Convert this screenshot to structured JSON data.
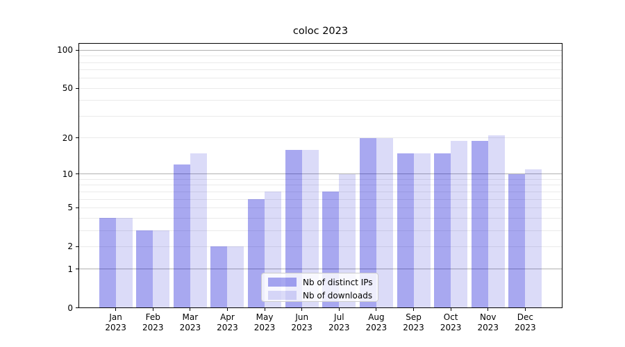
{
  "chart_data": {
    "type": "bar",
    "title": "coloc 2023",
    "x_categories": [
      "Jan",
      "Feb",
      "Mar",
      "Apr",
      "May",
      "Jun",
      "Jul",
      "Aug",
      "Sep",
      "Oct",
      "Nov",
      "Dec"
    ],
    "x_year_label": "2023",
    "series": [
      {
        "name": "Nb of distinct IPs",
        "color": "rgba(0,0,210,0.34)",
        "values": [
          4,
          3,
          12,
          2,
          6,
          16,
          7,
          20,
          15,
          15,
          19,
          10
        ]
      },
      {
        "name": "Nb of downloads",
        "color": "rgba(0,0,205,0.14)",
        "values": [
          4,
          3,
          15,
          2,
          7,
          16,
          10,
          20,
          15,
          19,
          21,
          11
        ]
      }
    ],
    "yscale": "log1p",
    "ylim": [
      0,
      114
    ],
    "yticks": [
      0,
      1,
      2,
      5,
      10,
      20,
      50,
      100
    ],
    "grid_major": [
      1,
      10,
      100
    ],
    "grid_minor": [
      2,
      3,
      4,
      5,
      6,
      7,
      8,
      9,
      20,
      30,
      40,
      50,
      60,
      70,
      80,
      90
    ],
    "grid_on": true,
    "xlabel": "",
    "ylabel": "",
    "legend": {
      "position": "lower center"
    }
  },
  "colors": {
    "grid_major": "#b0b0b0",
    "grid_minor": "#eaeaea",
    "axis": "#000000",
    "background": "#ffffff"
  }
}
